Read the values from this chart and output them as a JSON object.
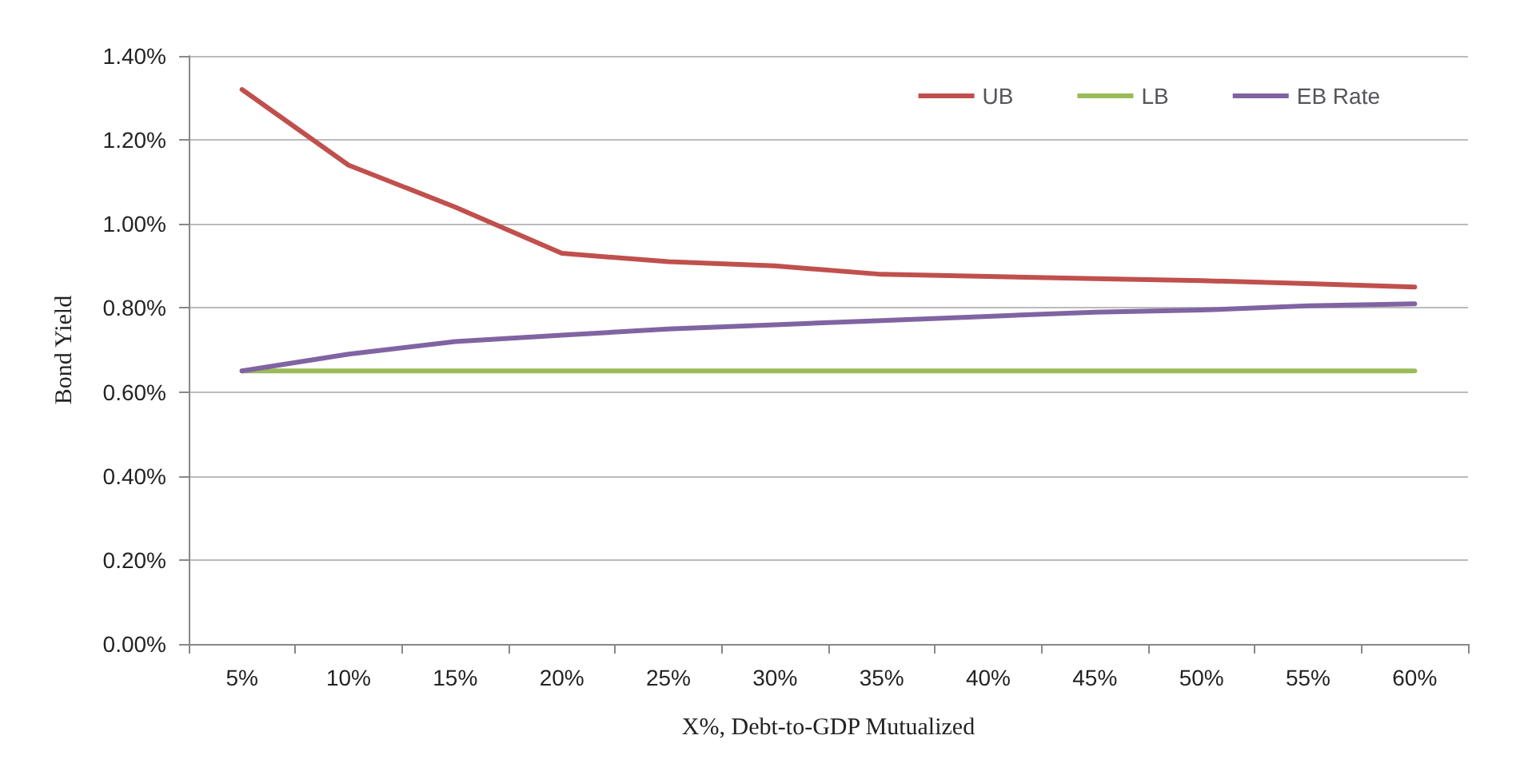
{
  "chart_data": {
    "type": "line",
    "xlabel": "X%, Debt-to-GDP Mutualized",
    "ylabel": "Bond Yield",
    "categories": [
      "5%",
      "10%",
      "15%",
      "20%",
      "25%",
      "30%",
      "35%",
      "40%",
      "45%",
      "50%",
      "55%",
      "60%"
    ],
    "series": [
      {
        "name": "UB",
        "color": "#c0504d",
        "values": [
          1.32,
          1.14,
          1.04,
          0.93,
          0.91,
          0.9,
          0.88,
          0.875,
          0.87,
          0.865,
          0.858,
          0.85
        ]
      },
      {
        "name": "LB",
        "color": "#9bbb59",
        "values": [
          0.65,
          0.65,
          0.65,
          0.65,
          0.65,
          0.65,
          0.65,
          0.65,
          0.65,
          0.65,
          0.65,
          0.65
        ]
      },
      {
        "name": "EB Rate",
        "color": "#8064a2",
        "values": [
          0.65,
          0.69,
          0.72,
          0.735,
          0.75,
          0.76,
          0.77,
          0.78,
          0.79,
          0.795,
          0.805,
          0.81
        ]
      }
    ],
    "ylim": [
      0,
      1.4
    ],
    "yticks": [
      {
        "value": 0,
        "label": "0.00%"
      },
      {
        "value": 0.2,
        "label": "0.20%"
      },
      {
        "value": 0.4,
        "label": "0.40%"
      },
      {
        "value": 0.6,
        "label": "0.60%"
      },
      {
        "value": 0.8,
        "label": "0.80%"
      },
      {
        "value": 1,
        "label": "1.00%"
      },
      {
        "value": 1.2,
        "label": "1.20%"
      },
      {
        "value": 1.4,
        "label": "1.40%"
      }
    ],
    "grid": "y",
    "legend": "top right",
    "marker": "none",
    "line_style": "solid"
  }
}
